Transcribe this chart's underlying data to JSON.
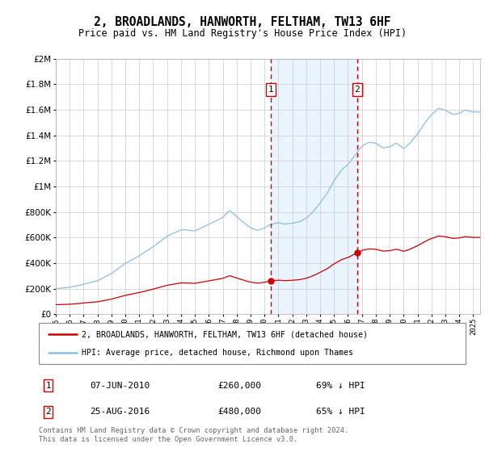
{
  "title": "2, BROADLANDS, HANWORTH, FELTHAM, TW13 6HF",
  "subtitle": "Price paid vs. HM Land Registry's House Price Index (HPI)",
  "legend_line1": "2, BROADLANDS, HANWORTH, FELTHAM, TW13 6HF (detached house)",
  "legend_line2": "HPI: Average price, detached house, Richmond upon Thames",
  "sale1_date": "07-JUN-2010",
  "sale1_price": 260000,
  "sale1_label": "1",
  "sale1_pct": "69% ↓ HPI",
  "sale2_date": "25-AUG-2016",
  "sale2_price": 480000,
  "sale2_label": "2",
  "sale2_pct": "65% ↓ HPI",
  "footer": "Contains HM Land Registry data © Crown copyright and database right 2024.\nThis data is licensed under the Open Government Licence v3.0.",
  "sale1_x": 2010.44,
  "sale2_x": 2016.65,
  "hpi_color": "#8bbfdb",
  "price_color": "#cc0000",
  "shade_color": "#ddeeff",
  "background_color": "#ffffff",
  "grid_color": "#cccccc",
  "ylim": [
    0,
    2000000
  ],
  "xlim": [
    1995.0,
    2025.5
  ]
}
